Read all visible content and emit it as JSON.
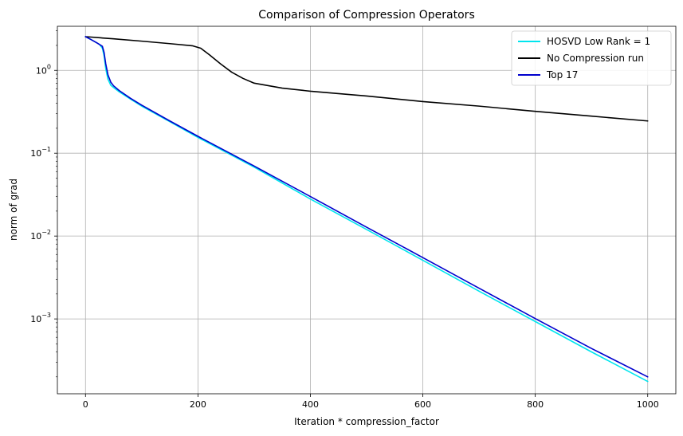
{
  "chart_data": {
    "type": "line",
    "title": "Comparison of Compression Operators",
    "xlabel": "Iteration * compression_factor",
    "ylabel": "norm of grad",
    "xlim": [
      -50,
      1050
    ],
    "ylim": [
      0.000125,
      3.4
    ],
    "yscale": "log",
    "grid": true,
    "legend_position": "top-right",
    "xticks": [
      0,
      200,
      400,
      600,
      800,
      1000
    ],
    "xtick_labels": [
      "0",
      "200",
      "400",
      "600",
      "800",
      "1000"
    ],
    "yticks": [
      0.001,
      0.01,
      0.1,
      1
    ],
    "ytick_bases": [
      "10",
      "10",
      "10",
      "10"
    ],
    "ytick_exponents": [
      "−3",
      "−2",
      "−1",
      "0"
    ],
    "series": [
      {
        "name": "HOSVD Low Rank = 1",
        "color": "#00e5ee",
        "x": [
          0,
          10,
          20,
          25,
          30,
          33,
          36,
          40,
          45,
          50,
          60,
          80,
          100,
          150,
          200,
          300,
          400,
          500,
          600,
          700,
          800,
          900,
          1000
        ],
        "y": [
          2.55,
          2.35,
          2.15,
          2.05,
          1.85,
          1.5,
          1.05,
          0.78,
          0.66,
          0.62,
          0.55,
          0.45,
          0.37,
          0.24,
          0.155,
          0.068,
          0.028,
          0.012,
          0.0051,
          0.00216,
          0.00093,
          0.0004,
          0.000176
        ]
      },
      {
        "name": "No Compression run",
        "color": "#000000",
        "x": [
          0,
          50,
          100,
          150,
          190,
          205,
          220,
          240,
          260,
          280,
          300,
          350,
          400,
          500,
          600,
          700,
          800,
          900,
          1000
        ],
        "y": [
          2.55,
          2.4,
          2.25,
          2.1,
          1.98,
          1.85,
          1.55,
          1.2,
          0.95,
          0.8,
          0.7,
          0.61,
          0.56,
          0.49,
          0.42,
          0.37,
          0.32,
          0.28,
          0.245
        ]
      },
      {
        "name": "Top 17",
        "color": "#0000cd",
        "x": [
          0,
          10,
          20,
          25,
          30,
          33,
          36,
          40,
          45,
          50,
          60,
          80,
          100,
          150,
          200,
          300,
          400,
          500,
          600,
          700,
          800,
          900,
          1000
        ],
        "y": [
          2.55,
          2.35,
          2.15,
          2.05,
          1.95,
          1.65,
          1.2,
          0.88,
          0.72,
          0.65,
          0.57,
          0.46,
          0.38,
          0.245,
          0.16,
          0.07,
          0.03,
          0.0128,
          0.0055,
          0.00235,
          0.00101,
          0.00044,
          0.0002
        ]
      }
    ]
  }
}
